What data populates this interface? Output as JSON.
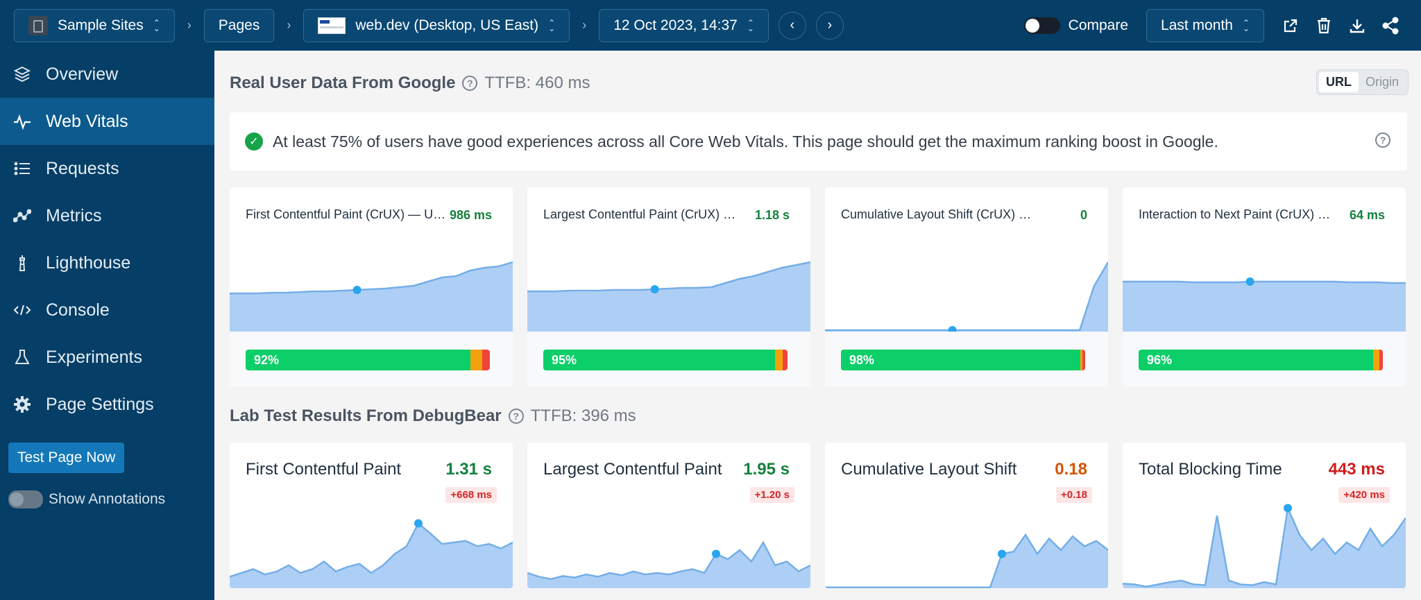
{
  "topbar": {
    "project": "Sample Sites",
    "pages": "Pages",
    "page": "web.dev (Desktop, US East)",
    "date": "12 Oct 2023, 14:37",
    "compare_label": "Compare",
    "range": "Last month"
  },
  "sidebar": {
    "items": [
      {
        "label": "Overview",
        "icon": "layers-icon"
      },
      {
        "label": "Web Vitals",
        "icon": "pulse-icon",
        "active": true
      },
      {
        "label": "Requests",
        "icon": "list-icon"
      },
      {
        "label": "Metrics",
        "icon": "line-chart-icon"
      },
      {
        "label": "Lighthouse",
        "icon": "lighthouse-icon"
      },
      {
        "label": "Console",
        "icon": "code-icon"
      },
      {
        "label": "Experiments",
        "icon": "flask-icon"
      },
      {
        "label": "Page Settings",
        "icon": "gear-icon"
      }
    ],
    "test_button": "Test Page Now",
    "annotations_label": "Show Annotations"
  },
  "real_user": {
    "title": "Real User Data From Google",
    "ttfb": "TTFB: 460 ms",
    "toggle": [
      "URL",
      "Origin"
    ],
    "banner": "At least 75% of users have good experiences across all Core Web Vitals. This page should get the maximum ranking boost in Google.",
    "cards": [
      {
        "title": "First Contentful Paint (CrUX) — URL",
        "value": "986 ms",
        "good_pct": "92%",
        "good": 0.92,
        "ni": 0.05,
        "poor": 0.03
      },
      {
        "title": "Largest Contentful Paint (CrUX) — URL",
        "value": "1.18 s",
        "good_pct": "95%",
        "good": 0.95,
        "ni": 0.03,
        "poor": 0.02
      },
      {
        "title": "Cumulative Layout Shift (CrUX) — URL",
        "value": "0",
        "good_pct": "98%",
        "good": 0.98,
        "ni": 0.01,
        "poor": 0.01
      },
      {
        "title": "Interaction to Next Paint (CrUX) — URL",
        "value": "64 ms",
        "good_pct": "96%",
        "good": 0.96,
        "ni": 0.025,
        "poor": 0.015
      }
    ]
  },
  "lab": {
    "title": "Lab Test Results From DebugBear",
    "ttfb": "TTFB: 396 ms",
    "cards": [
      {
        "title": "First Contentful Paint",
        "value": "1.31 s",
        "delta": "+668 ms",
        "value_color": "#15803d"
      },
      {
        "title": "Largest Contentful Paint",
        "value": "1.95 s",
        "delta": "+1.20 s",
        "value_color": "#15803d"
      },
      {
        "title": "Cumulative Layout Shift",
        "value": "0.18",
        "delta": "+0.18",
        "value_color": "#d35400"
      },
      {
        "title": "Total Blocking Time",
        "value": "443 ms",
        "delta": "+420 ms",
        "value_color": "#d01b1b"
      }
    ]
  },
  "colors": {
    "accent": "#053e66",
    "good": "#0ccf69",
    "needs_improvement": "#f1a20c",
    "poor": "#f0443c",
    "chart_fill": "#aecff5",
    "chart_line": "#74aee8",
    "marker": "#2aa6ee"
  }
}
